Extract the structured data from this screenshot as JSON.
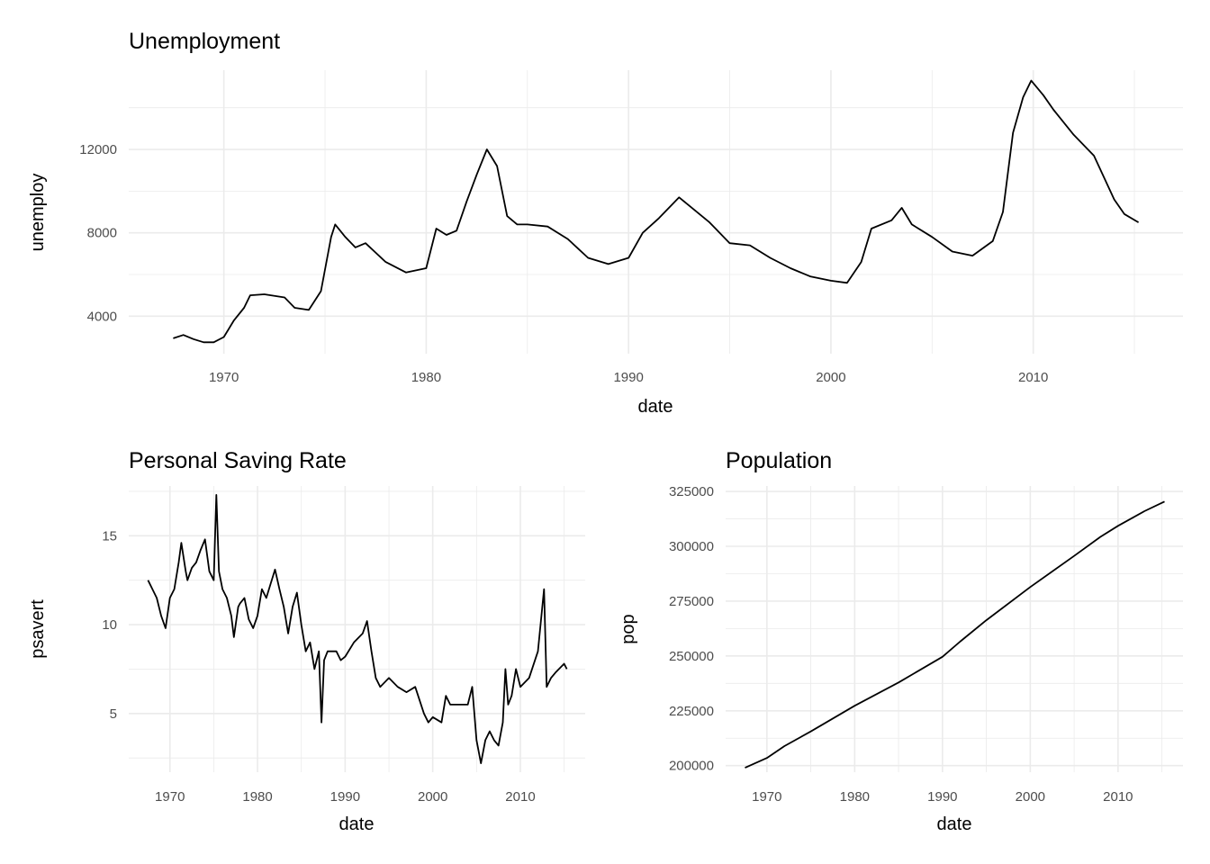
{
  "chart_data": [
    {
      "type": "line",
      "title": "Unemployment",
      "xlabel": "date",
      "ylabel": "unemploy",
      "xlim": [
        1965.3,
        2017.4
      ],
      "ylim": [
        2200,
        15800
      ],
      "xticks": [
        1970,
        1980,
        1990,
        2000,
        2010
      ],
      "xtick_labels": [
        "1970",
        "1980",
        "1990",
        "2000",
        "2010"
      ],
      "xminor": [
        1965,
        1975,
        1985,
        1995,
        2005,
        2015
      ],
      "yticks": [
        4000,
        8000,
        12000
      ],
      "ytick_labels": [
        "4000",
        "8000",
        "12000"
      ],
      "yminor": [
        2000,
        6000,
        10000,
        14000
      ],
      "grid": true,
      "x": [
        1967.5,
        1968,
        1968.5,
        1969,
        1969.5,
        1970,
        1970.5,
        1971,
        1971.3,
        1972,
        1973,
        1973.5,
        1974.2,
        1974.8,
        1975.3,
        1975.5,
        1976,
        1976.5,
        1977,
        1978,
        1979,
        1980,
        1980.5,
        1981,
        1981.5,
        1982,
        1982.5,
        1983,
        1983.5,
        1984,
        1984.5,
        1985,
        1986,
        1987,
        1988,
        1989,
        1990,
        1990.7,
        1991.5,
        1992.5,
        1993,
        1994,
        1995,
        1996,
        1997,
        1998,
        1999,
        2000,
        2000.8,
        2001.5,
        2002,
        2003,
        2003.5,
        2004,
        2005,
        2006,
        2007,
        2008,
        2008.5,
        2009,
        2009.5,
        2009.9,
        2010.5,
        2011,
        2012,
        2013,
        2014,
        2014.5,
        2015.2
      ],
      "y": [
        2940,
        3100,
        2900,
        2750,
        2750,
        3000,
        3800,
        4400,
        5000,
        5050,
        4900,
        4400,
        4300,
        5200,
        7800,
        8400,
        7800,
        7300,
        7500,
        6600,
        6100,
        6300,
        8200,
        7900,
        8100,
        9500,
        10800,
        12000,
        11200,
        8800,
        8400,
        8400,
        8300,
        7700,
        6800,
        6500,
        6800,
        8000,
        8700,
        9700,
        9300,
        8500,
        7500,
        7400,
        6800,
        6300,
        5900,
        5700,
        5600,
        6600,
        8200,
        8600,
        9200,
        8400,
        7800,
        7100,
        6900,
        7600,
        9000,
        12800,
        14500,
        15300,
        14600,
        13900,
        12700,
        11700,
        9600,
        8900,
        8500
      ]
    },
    {
      "type": "line",
      "title": "Personal Saving Rate",
      "xlabel": "date",
      "ylabel": "psavert",
      "xlim": [
        1965.3,
        2017.4
      ],
      "ylim": [
        1.7,
        17.8
      ],
      "xticks": [
        1970,
        1980,
        1990,
        2000,
        2010
      ],
      "xtick_labels": [
        "1970",
        "1980",
        "1990",
        "2000",
        "2010"
      ],
      "xminor": [
        1965,
        1975,
        1985,
        1995,
        2005,
        2015
      ],
      "yticks": [
        5,
        10,
        15
      ],
      "ytick_labels": [
        "5",
        "10",
        "15"
      ],
      "yminor": [
        2.5,
        7.5,
        12.5,
        17.5
      ],
      "grid": true,
      "x": [
        1967.5,
        1968,
        1968.5,
        1969,
        1969.5,
        1970,
        1970.5,
        1971,
        1971.3,
        1971.8,
        1972,
        1972.5,
        1973,
        1973.5,
        1974,
        1974.5,
        1975,
        1975.3,
        1975.6,
        1976,
        1976.5,
        1977,
        1977.3,
        1977.8,
        1978,
        1978.5,
        1979,
        1979.5,
        1980,
        1980.5,
        1981,
        1981.5,
        1982,
        1982.5,
        1983,
        1983.5,
        1984,
        1984.5,
        1985,
        1985.5,
        1986,
        1986.5,
        1987,
        1987.3,
        1987.6,
        1988,
        1989,
        1989.5,
        1990,
        1991,
        1992,
        1992.5,
        1993,
        1993.5,
        1994,
        1995,
        1996,
        1997,
        1998,
        1999,
        1999.5,
        2000,
        2001,
        2001.5,
        2002,
        2003,
        2004,
        2004.5,
        2005,
        2005.5,
        2006,
        2006.5,
        2007,
        2007.5,
        2008,
        2008.3,
        2008.6,
        2009,
        2009.5,
        2010,
        2011,
        2012,
        2012.7,
        2013,
        2013.5,
        2014,
        2015,
        2015.3
      ],
      "y": [
        12.5,
        12,
        11.5,
        10.5,
        9.8,
        11.5,
        12,
        13.5,
        14.6,
        13,
        12.5,
        13.2,
        13.5,
        14.2,
        14.8,
        13,
        12.5,
        17.3,
        13,
        12,
        11.5,
        10.5,
        9.3,
        11,
        11.2,
        11.5,
        10.3,
        9.8,
        10.5,
        12,
        11.5,
        12.3,
        13.1,
        12,
        11,
        9.5,
        11,
        11.8,
        10,
        8.5,
        9,
        7.5,
        8.5,
        4.5,
        8,
        8.5,
        8.5,
        8,
        8.2,
        9,
        9.5,
        10.2,
        8.5,
        7,
        6.5,
        7,
        6.5,
        6.2,
        6.5,
        5,
        4.5,
        4.8,
        4.5,
        6,
        5.5,
        5.5,
        5.5,
        6.5,
        3.5,
        2.2,
        3.5,
        4,
        3.5,
        3.2,
        4.5,
        7.5,
        5.5,
        6,
        7.5,
        6.5,
        7,
        8.5,
        12,
        6.5,
        7,
        7.3,
        7.8,
        7.5
      ]
    },
    {
      "type": "line",
      "title": "Population",
      "xlabel": "date",
      "ylabel": "pop",
      "xlim": [
        1965.3,
        2017.4
      ],
      "ylim": [
        197000,
        327500
      ],
      "xticks": [
        1970,
        1980,
        1990,
        2000,
        2010
      ],
      "xtick_labels": [
        "1970",
        "1980",
        "1990",
        "2000",
        "2010"
      ],
      "xminor": [
        1965,
        1975,
        1985,
        1995,
        2005,
        2015
      ],
      "yticks": [
        200000,
        225000,
        250000,
        275000,
        300000,
        325000
      ],
      "ytick_labels": [
        "200000",
        "225000",
        "250000",
        "275000",
        "300000",
        "325000"
      ],
      "yminor": [
        212500,
        237500,
        262500,
        287500,
        312500
      ],
      "grid": true,
      "x": [
        1967.5,
        1970,
        1972,
        1975,
        1980,
        1985,
        1990,
        1992,
        1995,
        2000,
        2005,
        2008,
        2010,
        2013,
        2015.3
      ],
      "y": [
        199000,
        203500,
        208900,
        215600,
        227300,
        237900,
        249600,
        256500,
        266300,
        281400,
        295600,
        304300,
        309300,
        316000,
        320400
      ]
    }
  ]
}
